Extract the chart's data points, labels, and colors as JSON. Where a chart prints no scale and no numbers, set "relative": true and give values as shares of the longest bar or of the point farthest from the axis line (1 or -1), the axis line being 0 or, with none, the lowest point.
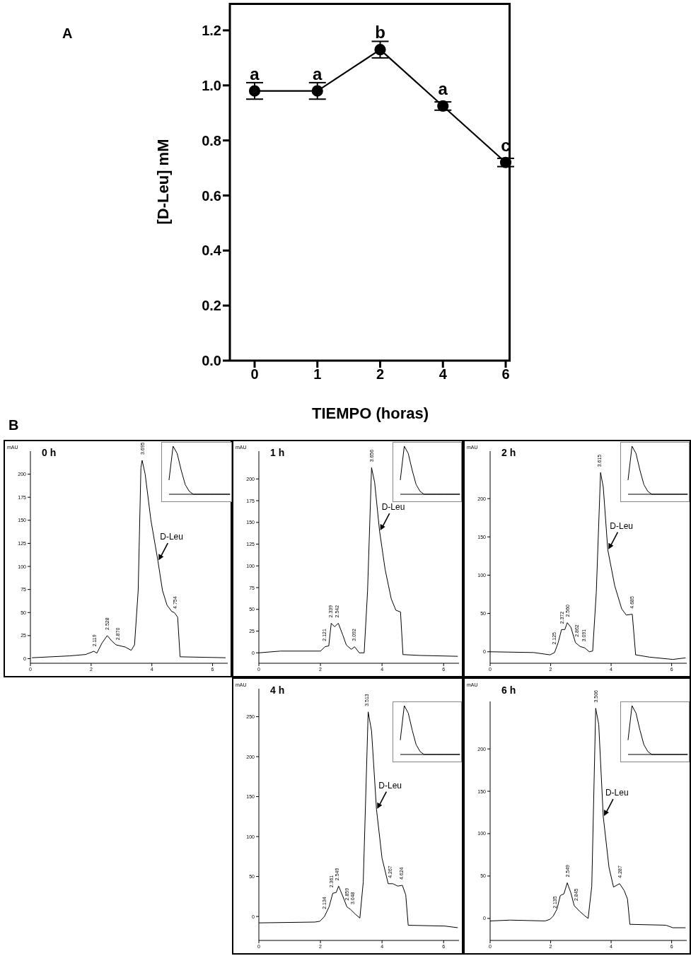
{
  "chart_data": [
    {
      "type": "line",
      "categories": [
        "0",
        "1",
        "2",
        "4",
        "6"
      ],
      "xlabel": "TIEMPO (horas)",
      "ylabel": "[D-Leu] mM",
      "ylim": [
        0,
        1.3
      ],
      "yticks": [
        {
          "value": 0,
          "label": "0.0"
        },
        {
          "value": 0.2,
          "label": "0.2"
        },
        {
          "value": 0.4,
          "label": "0.4"
        },
        {
          "value": 0.6,
          "label": "0.6"
        },
        {
          "value": 0.8,
          "label": "0.8"
        },
        {
          "value": 1,
          "label": "1.0"
        },
        {
          "value": 1.2,
          "label": "1.2"
        }
      ],
      "marker": "circle",
      "line_style": "solid",
      "series": [
        {
          "color": "#000000",
          "values": [
            0.98,
            0.98,
            1.13,
            0.925,
            0.72
          ],
          "errors": [
            0.03,
            0.03,
            0.03,
            0.015,
            0.015
          ]
        }
      ],
      "annotations": [
        "A",
        {
          "text": "a",
          "x": "0",
          "y": 0.98
        },
        {
          "text": "a",
          "x": "1",
          "y": 0.98
        },
        {
          "text": "b",
          "x": "2",
          "y": 1.13
        },
        {
          "text": "a",
          "x": "4",
          "y": 0.925
        },
        {
          "text": "c",
          "x": "6",
          "y": 0.72
        }
      ]
    },
    {
      "type": "line",
      "title": "0 h",
      "ylabel": "mAU",
      "x": [
        0.06,
        1.29,
        1.82,
        2.09,
        2.19,
        2.36,
        2.53,
        2.67,
        2.82,
        3.13,
        3.32,
        3.43,
        3.55,
        3.64,
        3.68,
        3.78,
        3.97,
        4.2,
        4.35,
        4.5,
        4.66,
        4.74,
        4.85,
        4.93,
        6.42
      ],
      "xlim": [
        0,
        6.5
      ],
      "xticks": [
        0,
        2,
        4,
        6
      ],
      "ylim": [
        -5,
        225
      ],
      "yticks": [
        0,
        25,
        50,
        75,
        100,
        125,
        150,
        175,
        200
      ],
      "marker": "none",
      "line_style": "solid",
      "series": [
        {
          "color": "#000000",
          "values": [
            1,
            3,
            4.5,
            8,
            6,
            17,
            25,
            19.5,
            15,
            12.5,
            9,
            15,
            74,
            207,
            215,
            200,
            150,
            106,
            74,
            58,
            51,
            50,
            45,
            2,
            1
          ]
        }
      ],
      "annotations": [
        "B",
        {
          "text": "D-Leu",
          "x": 4.2,
          "y": 106
        },
        {
          "text": "2.119",
          "x": 2.119,
          "y": 7
        },
        {
          "text": "2.528",
          "x": 2.528,
          "y": 25
        },
        {
          "text": "2.870",
          "x": 2.87,
          "y": 14
        },
        {
          "text": "3.695",
          "x": 3.695,
          "y": 215
        },
        {
          "text": "4.754",
          "x": 4.754,
          "y": 48
        }
      ]
    },
    {
      "type": "line",
      "categories": [
        null,
        null,
        null,
        null,
        null,
        null,
        null,
        null,
        null,
        null,
        null,
        null,
        null,
        null,
        null,
        null
      ],
      "relative": true,
      "tick_labels": false,
      "marker": "none",
      "series": [
        {
          "color": "#000000",
          "values": [
            0.3,
            1,
            0.85,
            0.5,
            0.2,
            0.06,
            0,
            0,
            0,
            0,
            0,
            0,
            0,
            0,
            0,
            0
          ]
        }
      ]
    },
    {
      "type": "line",
      "title": "1 h",
      "ylabel": "mAU",
      "x": [
        0,
        0.7,
        2.0,
        2.15,
        2.27,
        2.35,
        2.46,
        2.58,
        2.73,
        2.84,
        3.0,
        3.11,
        3.26,
        3.42,
        3.53,
        3.66,
        3.76,
        3.92,
        4.1,
        4.3,
        4.45,
        4.6,
        4.68,
        5.22,
        6.45
      ],
      "xlim": [
        0,
        6.5
      ],
      "xticks": [
        0,
        2,
        4,
        6
      ],
      "ylim": [
        -12,
        232
      ],
      "yticks": [
        0,
        25,
        50,
        75,
        100,
        125,
        150,
        175,
        200
      ],
      "marker": "none",
      "line_style": "solid",
      "series": [
        {
          "color": "#000000",
          "values": [
            0,
            2,
            2,
            7,
            8,
            34,
            30,
            34,
            20,
            9,
            4,
            7,
            0,
            0,
            71,
            213,
            196,
            140,
            96,
            62,
            49,
            47,
            -2,
            -3,
            -4
          ]
        }
      ],
      "annotations": [
        {
          "text": "D-Leu",
          "x": 3.92,
          "y": 140
        },
        {
          "text": "2.121",
          "x": 2.121,
          "y": 7
        },
        {
          "text": "2.339",
          "x": 2.339,
          "y": 34
        },
        {
          "text": "2.542",
          "x": 2.542,
          "y": 34
        },
        {
          "text": "3.092",
          "x": 3.092,
          "y": 7
        },
        {
          "text": "3.656",
          "x": 3.656,
          "y": 213
        }
      ]
    },
    {
      "type": "line",
      "categories": [
        null,
        null,
        null,
        null,
        null,
        null,
        null,
        null,
        null,
        null,
        null,
        null,
        null,
        null,
        null,
        null
      ],
      "relative": true,
      "tick_labels": false,
      "marker": "none",
      "series": [
        {
          "color": "#000000",
          "values": [
            0.3,
            1,
            0.85,
            0.5,
            0.2,
            0.06,
            0,
            0,
            0,
            0,
            0,
            0,
            0,
            0,
            0,
            0
          ]
        }
      ]
    },
    {
      "type": "line",
      "title": "2 h",
      "ylabel": "mAU",
      "x": [
        0,
        1.44,
        1.98,
        2.13,
        2.25,
        2.36,
        2.47,
        2.55,
        2.67,
        2.82,
        2.97,
        3.13,
        3.28,
        3.39,
        3.51,
        3.65,
        3.74,
        3.89,
        4.12,
        4.35,
        4.5,
        4.7,
        4.81,
        5.27,
        6.04,
        6.45
      ],
      "xlim": [
        0,
        6.5
      ],
      "xticks": [
        0,
        2,
        4,
        6
      ],
      "ylim": [
        -15,
        262
      ],
      "yticks": [
        0,
        50,
        100,
        150,
        200
      ],
      "marker": "none",
      "line_style": "solid",
      "series": [
        {
          "color": "#000000",
          "values": [
            0,
            -1,
            -4,
            -1,
            12,
            29,
            29,
            38,
            32,
            12,
            7,
            5,
            0,
            1,
            78,
            234,
            215,
            133,
            86,
            56,
            48,
            49,
            -4,
            -7,
            -10,
            -8
          ]
        }
      ],
      "annotations": [
        {
          "text": "D-Leu",
          "x": 3.89,
          "y": 133
        },
        {
          "text": "2.125",
          "x": 2.125,
          "y": 2
        },
        {
          "text": "2.372",
          "x": 2.372,
          "y": 29
        },
        {
          "text": "2.560",
          "x": 2.56,
          "y": 38
        },
        {
          "text": "2.862",
          "x": 2.862,
          "y": 12
        },
        {
          "text": "3.091",
          "x": 3.091,
          "y": 6
        },
        {
          "text": "3.615",
          "x": 3.615,
          "y": 234
        },
        {
          "text": "4.685",
          "x": 4.685,
          "y": 49
        }
      ]
    },
    {
      "type": "line",
      "categories": [
        null,
        null,
        null,
        null,
        null,
        null,
        null,
        null,
        null,
        null,
        null,
        null,
        null,
        null,
        null,
        null
      ],
      "relative": true,
      "tick_labels": false,
      "marker": "none",
      "series": [
        {
          "color": "#000000",
          "values": [
            0.3,
            1,
            0.85,
            0.5,
            0.2,
            0.06,
            0,
            0,
            0,
            0,
            0,
            0,
            0,
            0,
            0,
            0
          ]
        }
      ]
    },
    {
      "type": "line",
      "title": "4 h",
      "ylabel": "mAU",
      "x": [
        0,
        1.82,
        1.98,
        2.13,
        2.28,
        2.4,
        2.51,
        2.59,
        2.74,
        2.86,
        2.97,
        3.13,
        3.28,
        3.39,
        3.55,
        3.66,
        3.82,
        4.0,
        4.2,
        4.35,
        4.51,
        4.66,
        4.77,
        4.85,
        6.04,
        6.45
      ],
      "xlim": [
        0,
        6.5
      ],
      "xticks": [
        0,
        2,
        4,
        6
      ],
      "ylim": [
        -30,
        285
      ],
      "yticks": [
        0,
        50,
        100,
        150,
        200,
        250
      ],
      "marker": "none",
      "line_style": "solid",
      "series": [
        {
          "color": "#000000",
          "values": [
            -8,
            -7,
            -6,
            0,
            12,
            29,
            30,
            38,
            24,
            12,
            9,
            3,
            -2,
            43,
            256,
            232,
            134,
            73,
            41,
            41,
            38,
            39,
            27,
            -11,
            -12,
            -14
          ]
        }
      ],
      "annotations": [
        {
          "text": "D-Leu",
          "x": 3.82,
          "y": 134
        },
        {
          "text": "2.134",
          "x": 2.134,
          "y": 2
        },
        {
          "text": "2.361",
          "x": 2.361,
          "y": 29
        },
        {
          "text": "2.549",
          "x": 2.549,
          "y": 38
        },
        {
          "text": "2.859",
          "x": 2.859,
          "y": 13
        },
        {
          "text": "3.048",
          "x": 3.048,
          "y": 8
        },
        {
          "text": "3.513",
          "x": 3.513,
          "y": 256
        },
        {
          "text": "4.267",
          "x": 4.267,
          "y": 41
        },
        {
          "text": "4.624",
          "x": 4.624,
          "y": 39
        }
      ]
    },
    {
      "type": "line",
      "categories": [
        null,
        null,
        null,
        null,
        null,
        null,
        null,
        null,
        null,
        null,
        null,
        null,
        null,
        null,
        null,
        null
      ],
      "relative": true,
      "tick_labels": false,
      "marker": "none",
      "series": [
        {
          "color": "#000000",
          "values": [
            0.3,
            1,
            0.85,
            0.5,
            0.2,
            0.06,
            0,
            0,
            0,
            0,
            0,
            0,
            0,
            0,
            0,
            0
          ]
        }
      ]
    },
    {
      "type": "line",
      "title": "6 h",
      "ylabel": "mAU",
      "x": [
        0,
        0.67,
        1.82,
        1.98,
        2.09,
        2.21,
        2.32,
        2.44,
        2.55,
        2.67,
        2.78,
        2.97,
        3.13,
        3.24,
        3.36,
        3.49,
        3.59,
        3.74,
        3.93,
        4.08,
        4.28,
        4.43,
        4.54,
        4.62,
        5.81,
        6.04,
        6.45
      ],
      "xlim": [
        0,
        6.5
      ],
      "xticks": [
        0,
        2,
        4,
        6
      ],
      "ylim": [
        -26,
        256
      ],
      "yticks": [
        0,
        50,
        100,
        150,
        200
      ],
      "marker": "none",
      "line_style": "solid",
      "series": [
        {
          "color": "#000000",
          "values": [
            -3,
            -2,
            -3,
            -1,
            3,
            11,
            27,
            29,
            42,
            30,
            15,
            8,
            3,
            0,
            38,
            248,
            229,
            120,
            60,
            37,
            41,
            33,
            23,
            -7,
            -8,
            -11,
            -11
          ]
        }
      ],
      "annotations": [
        {
          "text": "D-Leu",
          "x": 3.74,
          "y": 120
        },
        {
          "text": "2.135",
          "x": 2.135,
          "y": 5
        },
        {
          "text": "2.549",
          "x": 2.549,
          "y": 42
        },
        {
          "text": "2.845",
          "x": 2.845,
          "y": 14
        },
        {
          "text": "3.506",
          "x": 3.506,
          "y": 248
        },
        {
          "text": "4.287",
          "x": 4.287,
          "y": 41
        }
      ]
    },
    {
      "type": "line",
      "categories": [
        null,
        null,
        null,
        null,
        null,
        null,
        null,
        null,
        null,
        null,
        null,
        null,
        null,
        null,
        null,
        null
      ],
      "relative": true,
      "tick_labels": false,
      "marker": "none",
      "series": [
        {
          "color": "#000000",
          "values": [
            0.3,
            1,
            0.85,
            0.5,
            0.2,
            0.06,
            0,
            0,
            0,
            0,
            0,
            0,
            0,
            0,
            0,
            0
          ]
        }
      ]
    }
  ]
}
